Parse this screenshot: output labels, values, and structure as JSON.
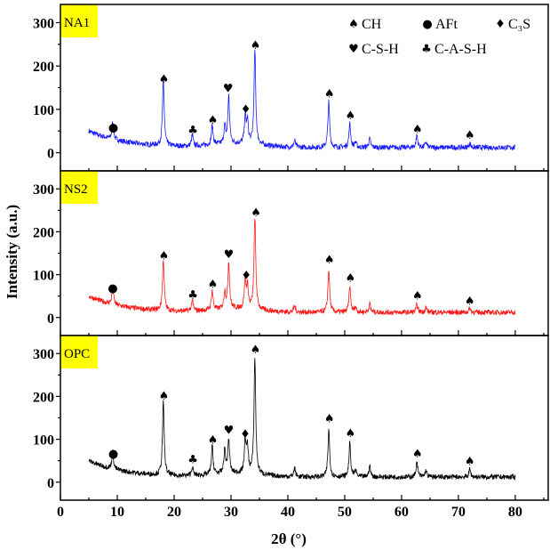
{
  "chart_data": {
    "type": "line",
    "xlabel": "2θ (°)",
    "ylabel": "Intensity (a.u.)",
    "xlim": [
      0,
      85.8
    ],
    "xticks": [
      0,
      10,
      20,
      30,
      40,
      50,
      60,
      70,
      80
    ],
    "ylim": [
      -42,
      342
    ],
    "yticks": [
      0,
      100,
      200,
      300
    ],
    "grid": false,
    "legend": {
      "placement": "top-right of top panel",
      "entries": [
        {
          "symbol": "♠",
          "label": "CH"
        },
        {
          "symbol": "●",
          "label": "AFt"
        },
        {
          "symbol": "♦",
          "label": "C₃S"
        },
        {
          "symbol": "♥",
          "label": "C-S-H"
        },
        {
          "symbol": "♣",
          "label": "C-A-S-H"
        }
      ]
    },
    "panels": [
      {
        "label": "NA1",
        "color": "#1a1aff",
        "label_bg": "#ffff00",
        "x_range": [
          5,
          80
        ],
        "peaks": [
          [
            9.2,
            40
          ],
          [
            18.1,
            150
          ],
          [
            23.2,
            25
          ],
          [
            26.7,
            45
          ],
          [
            28.9,
            40
          ],
          [
            29.6,
            110
          ],
          [
            32.5,
            60
          ],
          [
            32.9,
            50
          ],
          [
            34.2,
            215
          ],
          [
            41.2,
            15
          ],
          [
            47.2,
            105
          ],
          [
            50.9,
            55
          ],
          [
            51.9,
            12
          ],
          [
            54.4,
            20
          ],
          [
            62.7,
            28
          ],
          [
            64.3,
            12
          ],
          [
            72.0,
            10
          ]
        ],
        "markers": [
          [
            "●",
            9.3,
            60
          ],
          [
            "♠",
            18.2,
            172
          ],
          [
            "♣",
            23.3,
            53
          ],
          [
            "♠",
            26.8,
            77
          ],
          [
            "♥",
            29.5,
            150
          ],
          [
            "♦",
            32.6,
            102
          ],
          [
            "♠",
            34.3,
            250
          ],
          [
            "♠",
            47.3,
            138
          ],
          [
            "♠",
            51.0,
            87
          ],
          [
            "♠",
            62.8,
            56
          ],
          [
            "♠",
            72.0,
            42
          ]
        ]
      },
      {
        "label": "NS2",
        "color": "#ff1a1a",
        "label_bg": "#ffff00",
        "x_range": [
          5,
          80
        ],
        "peaks": [
          [
            9.2,
            40
          ],
          [
            18.1,
            120
          ],
          [
            23.2,
            25
          ],
          [
            26.7,
            45
          ],
          [
            28.9,
            40
          ],
          [
            29.6,
            110
          ],
          [
            32.5,
            65
          ],
          [
            32.9,
            50
          ],
          [
            34.2,
            215
          ],
          [
            41.2,
            15
          ],
          [
            47.2,
            100
          ],
          [
            50.9,
            60
          ],
          [
            51.9,
            12
          ],
          [
            54.4,
            20
          ],
          [
            62.7,
            18
          ],
          [
            64.3,
            12
          ],
          [
            72.0,
            10
          ]
        ],
        "markers": [
          [
            "●",
            9.2,
            70
          ],
          [
            "♠",
            18.2,
            146
          ],
          [
            "♣",
            23.3,
            55
          ],
          [
            "♠",
            26.8,
            79
          ],
          [
            "♥",
            29.6,
            149
          ],
          [
            "♦",
            32.7,
            100
          ],
          [
            "♠",
            34.4,
            247
          ],
          [
            "♠",
            47.3,
            136
          ],
          [
            "♠",
            51.0,
            94
          ],
          [
            "♠",
            62.8,
            52
          ],
          [
            "♠",
            72.0,
            40
          ]
        ]
      },
      {
        "label": "OPC",
        "color": "#000000",
        "label_bg": "#ffff00",
        "x_range": [
          5,
          80
        ],
        "peaks": [
          [
            9.2,
            40
          ],
          [
            18.1,
            170
          ],
          [
            23.2,
            20
          ],
          [
            26.7,
            65
          ],
          [
            28.9,
            55
          ],
          [
            29.6,
            80
          ],
          [
            32.5,
            75
          ],
          [
            32.9,
            60
          ],
          [
            34.2,
            270
          ],
          [
            41.2,
            20
          ],
          [
            47.2,
            110
          ],
          [
            50.9,
            78
          ],
          [
            51.9,
            15
          ],
          [
            54.4,
            25
          ],
          [
            62.7,
            35
          ],
          [
            64.3,
            15
          ],
          [
            72.0,
            18
          ]
        ],
        "markers": [
          [
            "●",
            9.3,
            68
          ],
          [
            "♠",
            18.2,
            203
          ],
          [
            "♣",
            23.3,
            55
          ],
          [
            "♠",
            26.8,
            100
          ],
          [
            "♥",
            29.6,
            123
          ],
          [
            "♦",
            32.5,
            114
          ],
          [
            "♠",
            34.3,
            311
          ],
          [
            "♠",
            47.3,
            150
          ],
          [
            "♠",
            51.0,
            116
          ],
          [
            "♠",
            62.8,
            68
          ],
          [
            "♠",
            72.0,
            50
          ]
        ]
      }
    ]
  }
}
